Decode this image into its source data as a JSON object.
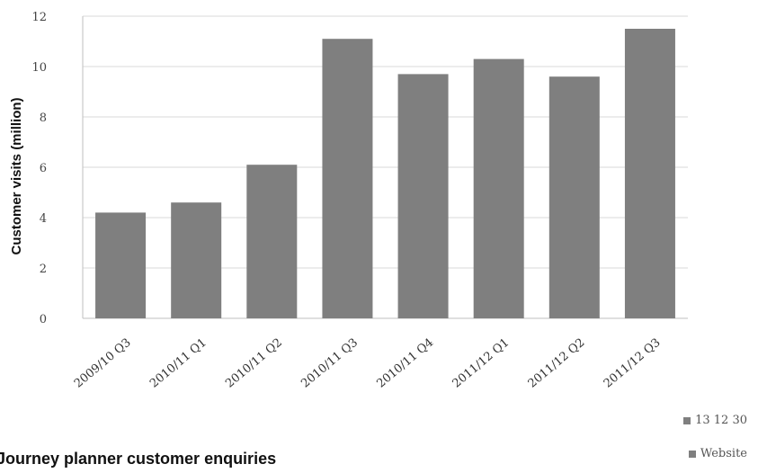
{
  "chart_data": {
    "type": "bar",
    "categories": [
      "2009/10 Q3",
      "2010/11 Q1",
      "2010/11 Q2",
      "2010/11 Q3",
      "2010/11 Q4",
      "2011/12 Q1",
      "2011/12 Q2",
      "2011/12 Q3"
    ],
    "series": [
      {
        "values": [
          4.2,
          4.6,
          6.1,
          11.1,
          9.7,
          10.3,
          9.6,
          11.5
        ]
      }
    ],
    "ylabel": "Customer visits (million)",
    "yticks": [
      "0",
      "2",
      "4",
      "6",
      "8",
      "10",
      "12"
    ],
    "ylim": [
      0,
      12
    ],
    "grid": true
  },
  "legend": [
    {
      "label": "13 12 30",
      "color": "#7f7f7f"
    },
    {
      "label": "Website",
      "color": "#7f7f7f"
    }
  ],
  "caption": "Journey planner customer enquiries",
  "colors": {
    "bar": "#7f7f7f",
    "grid": "#d9d9d9",
    "axis": "#bfbfbf"
  }
}
